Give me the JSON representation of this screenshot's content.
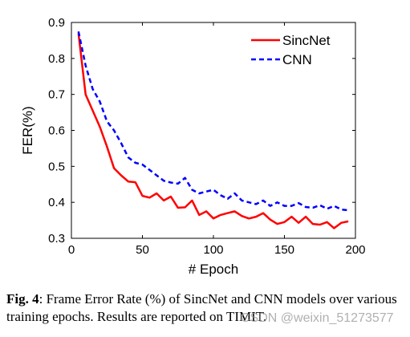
{
  "chart_data": {
    "type": "line",
    "xlabel": "# Epoch",
    "ylabel": "FER(%)",
    "xlim": [
      0,
      200
    ],
    "ylim": [
      0.3,
      0.9
    ],
    "xticks": [
      0,
      50,
      100,
      150,
      200
    ],
    "yticks": [
      0.3,
      0.4,
      0.5,
      0.6,
      0.7,
      0.8,
      0.9
    ],
    "xtick_labels": [
      "0",
      "50",
      "100",
      "150",
      "200"
    ],
    "ytick_labels": [
      "0.3",
      "0.4",
      "0.5",
      "0.6",
      "0.7",
      "0.8",
      "0.9"
    ],
    "grid": false,
    "legend_position": "top-right",
    "series": [
      {
        "name": "SincNet",
        "color": "#ff0000",
        "style": "solid",
        "x": [
          5,
          10,
          15,
          20,
          25,
          30,
          35,
          40,
          45,
          50,
          55,
          60,
          65,
          70,
          75,
          80,
          85,
          90,
          95,
          100,
          105,
          110,
          115,
          120,
          125,
          130,
          135,
          140,
          145,
          150,
          155,
          160,
          165,
          170,
          175,
          180,
          185,
          190,
          195
        ],
        "values": [
          0.87,
          0.7,
          0.655,
          0.61,
          0.555,
          0.495,
          0.475,
          0.458,
          0.456,
          0.418,
          0.413,
          0.425,
          0.405,
          0.416,
          0.385,
          0.386,
          0.405,
          0.365,
          0.375,
          0.355,
          0.365,
          0.37,
          0.375,
          0.362,
          0.355,
          0.36,
          0.37,
          0.352,
          0.34,
          0.345,
          0.36,
          0.343,
          0.36,
          0.34,
          0.338,
          0.345,
          0.328,
          0.343,
          0.347
        ]
      },
      {
        "name": "CNN",
        "color": "#0000ff",
        "style": "dashed",
        "x": [
          5,
          10,
          15,
          20,
          25,
          30,
          35,
          40,
          45,
          50,
          55,
          60,
          65,
          70,
          75,
          80,
          85,
          90,
          95,
          100,
          105,
          110,
          115,
          120,
          125,
          130,
          135,
          140,
          145,
          150,
          155,
          160,
          165,
          170,
          175,
          180,
          185,
          190,
          195
        ],
        "values": [
          0.875,
          0.78,
          0.715,
          0.68,
          0.625,
          0.6,
          0.565,
          0.525,
          0.51,
          0.505,
          0.49,
          0.475,
          0.46,
          0.455,
          0.452,
          0.468,
          0.435,
          0.425,
          0.43,
          0.435,
          0.42,
          0.41,
          0.425,
          0.405,
          0.4,
          0.395,
          0.405,
          0.39,
          0.4,
          0.39,
          0.39,
          0.398,
          0.387,
          0.385,
          0.392,
          0.382,
          0.39,
          0.38,
          0.378
        ]
      }
    ]
  },
  "caption": {
    "label": "Fig. 4",
    "text": ": Frame Error Rate (%) of SincNet and CNN models over various training epochs. Results are reported on TIMIT."
  },
  "watermark": "CSDN @weixin_51273577"
}
